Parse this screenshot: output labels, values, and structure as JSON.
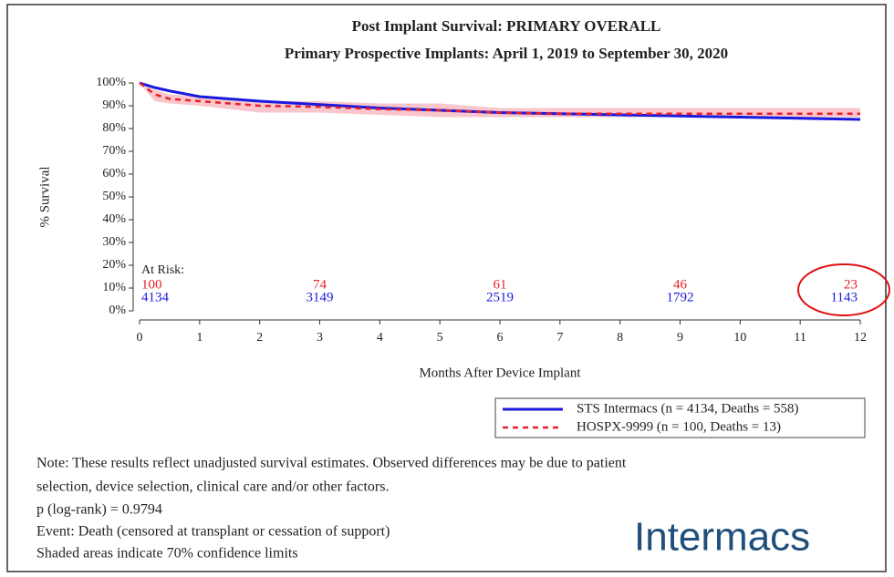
{
  "chart_data": {
    "type": "line",
    "title": "Post Implant Survival: PRIMARY OVERALL",
    "subtitle": "Primary Prospective Implants: April 1, 2019 to September 30, 2020",
    "xlabel": "Months After Device Implant",
    "ylabel": "% Survival",
    "xlim": [
      0,
      12
    ],
    "ylim": [
      0,
      100
    ],
    "xticks": [
      0,
      1,
      2,
      3,
      4,
      5,
      6,
      7,
      8,
      9,
      10,
      11,
      12
    ],
    "yticks": [
      {
        "value": 0,
        "label": "0%"
      },
      {
        "value": 10,
        "label": "10%"
      },
      {
        "value": 20,
        "label": "20%"
      },
      {
        "value": 30,
        "label": "30%"
      },
      {
        "value": 40,
        "label": "40%"
      },
      {
        "value": 50,
        "label": "50%"
      },
      {
        "value": 60,
        "label": "60%"
      },
      {
        "value": 70,
        "label": "70%"
      },
      {
        "value": 80,
        "label": "80%"
      },
      {
        "value": 90,
        "label": "90%"
      },
      {
        "value": 100,
        "label": "100%"
      }
    ],
    "x": [
      0,
      0.25,
      0.5,
      1,
      2,
      3,
      4,
      5,
      6,
      7,
      8,
      9,
      10,
      11,
      12
    ],
    "series": [
      {
        "name": "STS Intermacs (n = 4134, Deaths = 558)",
        "color": "#1a1adf",
        "dash": false,
        "values": [
          100,
          98,
          96.5,
          94,
          92,
          90.5,
          89,
          88,
          87,
          86.5,
          86,
          85.5,
          85,
          84.5,
          84
        ]
      },
      {
        "name": "HOSPX-9999 (n = 100, Deaths = 13)",
        "color": "#e8202a",
        "dash": true,
        "band_color": "#f7b8bf",
        "values": [
          100,
          95,
          93,
          92,
          90,
          89.5,
          88.5,
          88,
          87,
          86.5,
          86.5,
          86.5,
          86.5,
          86.5,
          86.5
        ],
        "ci_lower": [
          100,
          92,
          91,
          90,
          87,
          87,
          86,
          85,
          85,
          85,
          85,
          85,
          85,
          85,
          85
        ],
        "ci_upper": [
          100,
          97,
          95,
          94,
          92,
          92,
          91,
          91,
          89,
          89,
          89,
          89,
          89,
          89,
          89
        ]
      }
    ],
    "at_risk": {
      "label": "At Risk:",
      "months": [
        0,
        3,
        6,
        9,
        12
      ],
      "rows": [
        [
          100,
          74,
          61,
          46,
          23
        ],
        [
          4134,
          3149,
          2519,
          1792,
          1143
        ]
      ]
    }
  },
  "notes": [
    "Note: These results reflect unadjusted survival estimates. Observed differences may be due to patient",
    "selection, device selection, clinical care and/or other factors.",
    "p (log-rank) = 0.9794",
    "Event: Death (censored at transplant or cessation of support)",
    "Shaded areas indicate 70% confidence limits"
  ],
  "logo": "Intermacs"
}
